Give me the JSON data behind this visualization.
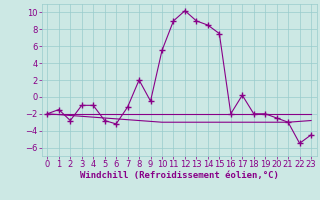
{
  "xlabel": "Windchill (Refroidissement éolien,°C)",
  "background_color": "#cce8e4",
  "line_color": "#880088",
  "grid_color": "#99cccc",
  "x": [
    0,
    1,
    2,
    3,
    4,
    5,
    6,
    7,
    8,
    9,
    10,
    11,
    12,
    13,
    14,
    15,
    16,
    17,
    18,
    19,
    20,
    21,
    22,
    23
  ],
  "windchill": [
    -2.0,
    -1.5,
    -2.8,
    -1.0,
    -1.0,
    -2.8,
    -3.2,
    -1.2,
    2.0,
    -0.5,
    5.5,
    9.0,
    10.2,
    9.0,
    8.5,
    7.5,
    -2.0,
    0.2,
    -2.0,
    -2.0,
    -2.5,
    -3.0,
    -5.5,
    -4.5
  ],
  "flat_line": [
    -2.0,
    -2.0,
    -2.0,
    -2.0,
    -2.0,
    -2.0,
    -2.0,
    -2.0,
    -2.0,
    -2.0,
    -2.0,
    -2.0,
    -2.0,
    -2.0,
    -2.0,
    -2.0,
    -2.0,
    -2.0,
    -2.0,
    -2.0,
    -2.0,
    -2.0,
    -2.0,
    -2.0
  ],
  "trend_line": [
    -2.0,
    -2.1,
    -2.2,
    -2.3,
    -2.4,
    -2.5,
    -2.6,
    -2.7,
    -2.8,
    -2.9,
    -3.0,
    -3.0,
    -3.0,
    -3.0,
    -3.0,
    -3.0,
    -3.0,
    -3.0,
    -3.0,
    -3.0,
    -3.0,
    -3.0,
    -2.9,
    -2.8
  ],
  "ylim": [
    -7,
    11
  ],
  "xlim": [
    -0.5,
    23.5
  ],
  "yticks": [
    -6,
    -4,
    -2,
    0,
    2,
    4,
    6,
    8,
    10
  ],
  "xticks": [
    0,
    1,
    2,
    3,
    4,
    5,
    6,
    7,
    8,
    9,
    10,
    11,
    12,
    13,
    14,
    15,
    16,
    17,
    18,
    19,
    20,
    21,
    22,
    23
  ],
  "marker": "+",
  "linewidth": 0.8,
  "marker_size": 4,
  "tick_fontsize": 6.0,
  "label_fontsize": 6.5
}
